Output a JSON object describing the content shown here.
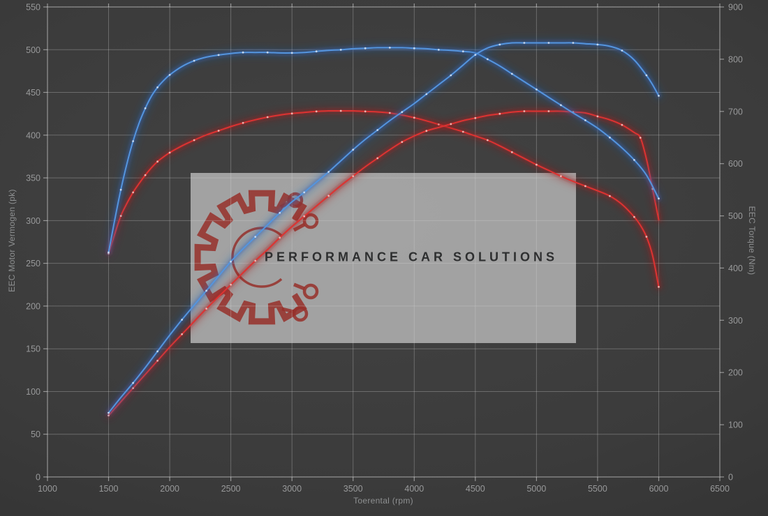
{
  "chart_data": {
    "type": "line",
    "title": "",
    "xlabel": "Toerental (rpm)",
    "ylabel_left": "EEC Motor Vermogen (pk)",
    "ylabel_right": "EEC Torque (Nm)",
    "x_range": [
      1000,
      6500
    ],
    "y_left_range": [
      0,
      550
    ],
    "y_right_range": [
      0,
      900
    ],
    "x_ticks": [
      1000,
      1500,
      2000,
      2500,
      3000,
      3500,
      4000,
      4500,
      5000,
      5500,
      6000,
      6500
    ],
    "y_left_ticks": [
      0,
      50,
      100,
      150,
      200,
      250,
      300,
      350,
      400,
      450,
      500,
      550
    ],
    "y_right_ticks": [
      0,
      100,
      200,
      300,
      400,
      500,
      600,
      700,
      800,
      900
    ],
    "grid": true,
    "legend": "none",
    "series": [
      {
        "name": "torque-red",
        "axis": "right",
        "color_core": "#dd3332",
        "color_glow": "#a51c1c",
        "color_dot": "#f7c0ba",
        "points": [
          [
            1500,
            428
          ],
          [
            1550,
            465
          ],
          [
            1600,
            500
          ],
          [
            1650,
            524
          ],
          [
            1700,
            545
          ],
          [
            1750,
            562
          ],
          [
            1800,
            578
          ],
          [
            1850,
            592
          ],
          [
            1900,
            604
          ],
          [
            1950,
            613
          ],
          [
            2000,
            621
          ],
          [
            2100,
            634
          ],
          [
            2200,
            645
          ],
          [
            2300,
            655
          ],
          [
            2400,
            663
          ],
          [
            2500,
            671
          ],
          [
            2600,
            678
          ],
          [
            2700,
            684
          ],
          [
            2800,
            689
          ],
          [
            2900,
            693
          ],
          [
            3000,
            696
          ],
          [
            3100,
            698
          ],
          [
            3200,
            700
          ],
          [
            3300,
            701
          ],
          [
            3400,
            701
          ],
          [
            3500,
            701
          ],
          [
            3600,
            700
          ],
          [
            3700,
            699
          ],
          [
            3800,
            697
          ],
          [
            3900,
            693
          ],
          [
            4000,
            688
          ],
          [
            4100,
            682
          ],
          [
            4200,
            675
          ],
          [
            4300,
            668
          ],
          [
            4400,
            661
          ],
          [
            4500,
            653
          ],
          [
            4600,
            645
          ],
          [
            4700,
            634
          ],
          [
            4800,
            622
          ],
          [
            4900,
            610
          ],
          [
            5000,
            598
          ],
          [
            5100,
            587
          ],
          [
            5200,
            576
          ],
          [
            5300,
            566
          ],
          [
            5400,
            557
          ],
          [
            5500,
            548
          ],
          [
            5600,
            538
          ],
          [
            5700,
            522
          ],
          [
            5800,
            498
          ],
          [
            5850,
            482
          ],
          [
            5900,
            460
          ],
          [
            5950,
            424
          ],
          [
            6000,
            364
          ]
        ]
      },
      {
        "name": "power-red",
        "axis": "left",
        "color_core": "#dd3332",
        "color_glow": "#a51c1c",
        "color_dot": "#f7c0ba",
        "points": [
          [
            1500,
            72
          ],
          [
            1600,
            88
          ],
          [
            1700,
            104
          ],
          [
            1800,
            120
          ],
          [
            1900,
            136
          ],
          [
            2000,
            152
          ],
          [
            2100,
            167
          ],
          [
            2200,
            182
          ],
          [
            2300,
            197
          ],
          [
            2400,
            211
          ],
          [
            2500,
            225
          ],
          [
            2600,
            239
          ],
          [
            2700,
            253
          ],
          [
            2800,
            266
          ],
          [
            2900,
            280
          ],
          [
            3000,
            293
          ],
          [
            3100,
            305
          ],
          [
            3200,
            317
          ],
          [
            3300,
            329
          ],
          [
            3400,
            341
          ],
          [
            3500,
            352
          ],
          [
            3600,
            363
          ],
          [
            3700,
            373
          ],
          [
            3800,
            383
          ],
          [
            3900,
            392
          ],
          [
            4000,
            399
          ],
          [
            4100,
            405
          ],
          [
            4200,
            409
          ],
          [
            4300,
            413
          ],
          [
            4400,
            417
          ],
          [
            4500,
            420
          ],
          [
            4600,
            423
          ],
          [
            4700,
            425
          ],
          [
            4800,
            427
          ],
          [
            4900,
            428
          ],
          [
            5000,
            428
          ],
          [
            5100,
            428
          ],
          [
            5200,
            428
          ],
          [
            5300,
            427
          ],
          [
            5400,
            426
          ],
          [
            5500,
            422
          ],
          [
            5600,
            418
          ],
          [
            5700,
            412
          ],
          [
            5800,
            403
          ],
          [
            5850,
            397
          ],
          [
            5900,
            372
          ],
          [
            5950,
            337
          ],
          [
            6000,
            301
          ]
        ]
      },
      {
        "name": "torque-blue",
        "axis": "right",
        "color_core": "#5595de",
        "color_glow": "#2a62b8",
        "color_dot": "#cfe0f5",
        "points": [
          [
            1500,
            430
          ],
          [
            1550,
            492
          ],
          [
            1600,
            550
          ],
          [
            1650,
            600
          ],
          [
            1700,
            643
          ],
          [
            1750,
            678
          ],
          [
            1800,
            706
          ],
          [
            1850,
            729
          ],
          [
            1900,
            746
          ],
          [
            1950,
            759
          ],
          [
            2000,
            770
          ],
          [
            2100,
            786
          ],
          [
            2200,
            797
          ],
          [
            2300,
            804
          ],
          [
            2400,
            808
          ],
          [
            2500,
            811
          ],
          [
            2600,
            813
          ],
          [
            2700,
            813
          ],
          [
            2800,
            813
          ],
          [
            2900,
            812
          ],
          [
            3000,
            812
          ],
          [
            3100,
            813
          ],
          [
            3200,
            815
          ],
          [
            3300,
            817
          ],
          [
            3400,
            818
          ],
          [
            3500,
            820
          ],
          [
            3600,
            821
          ],
          [
            3700,
            822
          ],
          [
            3800,
            822
          ],
          [
            3900,
            822
          ],
          [
            4000,
            821
          ],
          [
            4100,
            820
          ],
          [
            4200,
            818
          ],
          [
            4300,
            817
          ],
          [
            4400,
            815
          ],
          [
            4500,
            812
          ],
          [
            4600,
            800
          ],
          [
            4700,
            787
          ],
          [
            4800,
            772
          ],
          [
            4900,
            757
          ],
          [
            5000,
            742
          ],
          [
            5100,
            727
          ],
          [
            5200,
            712
          ],
          [
            5300,
            697
          ],
          [
            5400,
            683
          ],
          [
            5500,
            668
          ],
          [
            5600,
            650
          ],
          [
            5700,
            630
          ],
          [
            5800,
            607
          ],
          [
            5900,
            578
          ],
          [
            6000,
            533
          ]
        ]
      },
      {
        "name": "power-blue",
        "axis": "left",
        "color_core": "#5595de",
        "color_glow": "#2a62b8",
        "color_dot": "#cfe0f5",
        "points": [
          [
            1500,
            75
          ],
          [
            1600,
            93
          ],
          [
            1700,
            110
          ],
          [
            1800,
            128
          ],
          [
            1900,
            147
          ],
          [
            2000,
            166
          ],
          [
            2100,
            184
          ],
          [
            2200,
            201
          ],
          [
            2300,
            218
          ],
          [
            2400,
            235
          ],
          [
            2500,
            252
          ],
          [
            2600,
            267
          ],
          [
            2700,
            281
          ],
          [
            2800,
            295
          ],
          [
            2900,
            309
          ],
          [
            3000,
            322
          ],
          [
            3100,
            333
          ],
          [
            3200,
            345
          ],
          [
            3300,
            357
          ],
          [
            3400,
            370
          ],
          [
            3500,
            383
          ],
          [
            3600,
            395
          ],
          [
            3700,
            406
          ],
          [
            3800,
            417
          ],
          [
            3900,
            427
          ],
          [
            4000,
            437
          ],
          [
            4100,
            448
          ],
          [
            4200,
            459
          ],
          [
            4300,
            470
          ],
          [
            4400,
            482
          ],
          [
            4500,
            494
          ],
          [
            4600,
            502
          ],
          [
            4700,
            506
          ],
          [
            4800,
            508
          ],
          [
            4900,
            508
          ],
          [
            5000,
            508
          ],
          [
            5100,
            508
          ],
          [
            5200,
            508
          ],
          [
            5300,
            508
          ],
          [
            5400,
            507
          ],
          [
            5500,
            506
          ],
          [
            5600,
            504
          ],
          [
            5700,
            499
          ],
          [
            5800,
            488
          ],
          [
            5900,
            470
          ],
          [
            5950,
            459
          ],
          [
            6000,
            446
          ]
        ]
      }
    ]
  },
  "watermark": {
    "text": "PERFORMANCE CAR SOLUTIONS",
    "box_color": "rgba(180,180,180,0.85)",
    "logo_color": "rgba(150,48,42,0.85)",
    "text_color": "#2e2f30"
  },
  "colors": {
    "background_center": "#434343",
    "background_edge": "#2c2c2c",
    "grid": "rgba(214,214,214,0.30)",
    "axis": "rgba(224,224,224,0.55)",
    "tick_label": "#98999a",
    "axis_title": "#8e9091"
  }
}
